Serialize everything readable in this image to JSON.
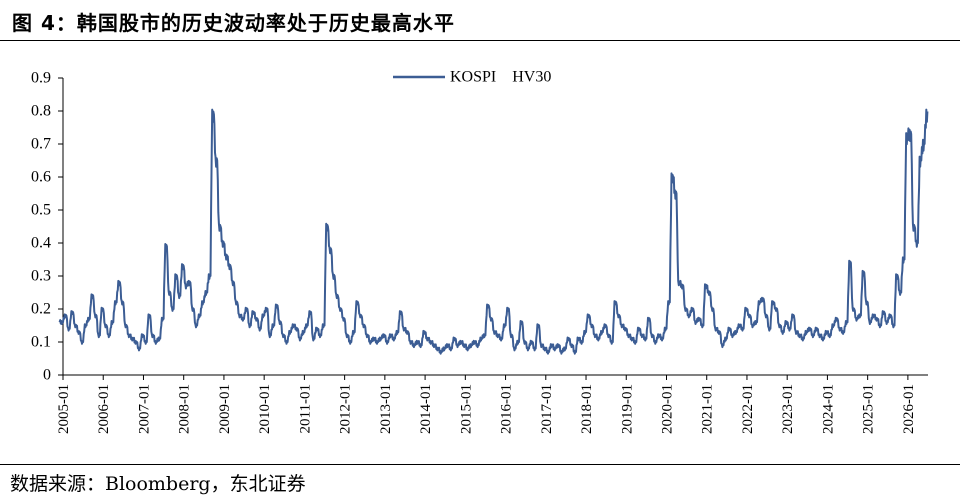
{
  "figure": {
    "title": "图 4：韩国股市的历史波动率处于历史最高水平",
    "source": "数据来源：Bloomberg，东北证券"
  },
  "chart_data": {
    "type": "line",
    "title": "",
    "xlabel": "",
    "ylabel": "",
    "x_tick_labels": [
      "2005-01",
      "2006-01",
      "2007-01",
      "2008-01",
      "2009-01",
      "2010-01",
      "2011-01",
      "2012-01",
      "2013-01",
      "2014-01",
      "2015-01",
      "2016-01",
      "2017-01",
      "2018-01",
      "2019-01",
      "2020-01",
      "2021-01",
      "2022-01",
      "2023-01",
      "2024-01",
      "2025-01",
      "2026-01"
    ],
    "y_tick_labels": [
      "0",
      "0.1",
      "0.2",
      "0.3",
      "0.4",
      "0.5",
      "0.6",
      "0.7",
      "0.8",
      "0.9"
    ],
    "ylim": [
      0,
      0.9
    ],
    "xlim": [
      "2005-01",
      "2026-07"
    ],
    "grid": false,
    "legend": "top-center",
    "series": [
      {
        "name": "KOSPI HV30",
        "color": "#3c5d94",
        "points": [
          [
            "2005-01",
            0.16
          ],
          [
            "2005-02",
            0.18
          ],
          [
            "2005-03",
            0.14
          ],
          [
            "2005-04",
            0.19
          ],
          [
            "2005-05",
            0.15
          ],
          [
            "2005-06",
            0.13
          ],
          [
            "2005-07",
            0.1
          ],
          [
            "2005-08",
            0.15
          ],
          [
            "2005-09",
            0.17
          ],
          [
            "2005-10",
            0.24
          ],
          [
            "2005-11",
            0.18
          ],
          [
            "2005-12",
            0.12
          ],
          [
            "2006-01",
            0.2
          ],
          [
            "2006-02",
            0.15
          ],
          [
            "2006-03",
            0.12
          ],
          [
            "2006-04",
            0.16
          ],
          [
            "2006-05",
            0.22
          ],
          [
            "2006-06",
            0.28
          ],
          [
            "2006-07",
            0.22
          ],
          [
            "2006-08",
            0.15
          ],
          [
            "2006-09",
            0.12
          ],
          [
            "2006-10",
            0.11
          ],
          [
            "2006-11",
            0.1
          ],
          [
            "2006-12",
            0.08
          ],
          [
            "2007-01",
            0.12
          ],
          [
            "2007-02",
            0.1
          ],
          [
            "2007-03",
            0.18
          ],
          [
            "2007-04",
            0.12
          ],
          [
            "2007-05",
            0.1
          ],
          [
            "2007-06",
            0.11
          ],
          [
            "2007-07",
            0.17
          ],
          [
            "2007-08",
            0.39
          ],
          [
            "2007-09",
            0.25
          ],
          [
            "2007-10",
            0.2
          ],
          [
            "2007-11",
            0.3
          ],
          [
            "2007-12",
            0.24
          ],
          [
            "2008-01",
            0.33
          ],
          [
            "2008-02",
            0.27
          ],
          [
            "2008-03",
            0.28
          ],
          [
            "2008-04",
            0.2
          ],
          [
            "2008-05",
            0.15
          ],
          [
            "2008-06",
            0.18
          ],
          [
            "2008-07",
            0.22
          ],
          [
            "2008-08",
            0.25
          ],
          [
            "2008-09",
            0.3
          ],
          [
            "2008-10",
            0.79
          ],
          [
            "2008-11",
            0.65
          ],
          [
            "2008-12",
            0.45
          ],
          [
            "2009-01",
            0.4
          ],
          [
            "2009-02",
            0.36
          ],
          [
            "2009-03",
            0.33
          ],
          [
            "2009-04",
            0.28
          ],
          [
            "2009-05",
            0.22
          ],
          [
            "2009-06",
            0.18
          ],
          [
            "2009-07",
            0.17
          ],
          [
            "2009-08",
            0.2
          ],
          [
            "2009-09",
            0.15
          ],
          [
            "2009-10",
            0.19
          ],
          [
            "2009-11",
            0.17
          ],
          [
            "2009-12",
            0.14
          ],
          [
            "2010-01",
            0.18
          ],
          [
            "2010-02",
            0.2
          ],
          [
            "2010-03",
            0.12
          ],
          [
            "2010-04",
            0.15
          ],
          [
            "2010-05",
            0.21
          ],
          [
            "2010-06",
            0.16
          ],
          [
            "2010-07",
            0.12
          ],
          [
            "2010-08",
            0.1
          ],
          [
            "2010-09",
            0.13
          ],
          [
            "2010-10",
            0.15
          ],
          [
            "2010-11",
            0.14
          ],
          [
            "2010-12",
            0.11
          ],
          [
            "2011-01",
            0.13
          ],
          [
            "2011-02",
            0.15
          ],
          [
            "2011-03",
            0.19
          ],
          [
            "2011-04",
            0.11
          ],
          [
            "2011-05",
            0.14
          ],
          [
            "2011-06",
            0.12
          ],
          [
            "2011-07",
            0.15
          ],
          [
            "2011-08",
            0.45
          ],
          [
            "2011-09",
            0.38
          ],
          [
            "2011-10",
            0.3
          ],
          [
            "2011-11",
            0.24
          ],
          [
            "2011-12",
            0.2
          ],
          [
            "2012-01",
            0.17
          ],
          [
            "2012-02",
            0.12
          ],
          [
            "2012-03",
            0.1
          ],
          [
            "2012-04",
            0.13
          ],
          [
            "2012-05",
            0.22
          ],
          [
            "2012-06",
            0.18
          ],
          [
            "2012-07",
            0.15
          ],
          [
            "2012-08",
            0.12
          ],
          [
            "2012-09",
            0.1
          ],
          [
            "2012-10",
            0.11
          ],
          [
            "2012-11",
            0.1
          ],
          [
            "2012-12",
            0.11
          ],
          [
            "2013-01",
            0.12
          ],
          [
            "2013-02",
            0.1
          ],
          [
            "2013-03",
            0.12
          ],
          [
            "2013-04",
            0.11
          ],
          [
            "2013-05",
            0.13
          ],
          [
            "2013-06",
            0.19
          ],
          [
            "2013-07",
            0.14
          ],
          [
            "2013-08",
            0.13
          ],
          [
            "2013-09",
            0.1
          ],
          [
            "2013-10",
            0.09
          ],
          [
            "2013-11",
            0.1
          ],
          [
            "2013-12",
            0.09
          ],
          [
            "2014-01",
            0.13
          ],
          [
            "2014-02",
            0.11
          ],
          [
            "2014-03",
            0.1
          ],
          [
            "2014-04",
            0.09
          ],
          [
            "2014-05",
            0.08
          ],
          [
            "2014-06",
            0.07
          ],
          [
            "2014-07",
            0.08
          ],
          [
            "2014-08",
            0.09
          ],
          [
            "2014-09",
            0.08
          ],
          [
            "2014-10",
            0.11
          ],
          [
            "2014-11",
            0.09
          ],
          [
            "2014-12",
            0.1
          ],
          [
            "2015-01",
            0.09
          ],
          [
            "2015-02",
            0.08
          ],
          [
            "2015-03",
            0.09
          ],
          [
            "2015-04",
            0.1
          ],
          [
            "2015-05",
            0.09
          ],
          [
            "2015-06",
            0.11
          ],
          [
            "2015-07",
            0.12
          ],
          [
            "2015-08",
            0.21
          ],
          [
            "2015-09",
            0.17
          ],
          [
            "2015-10",
            0.13
          ],
          [
            "2015-11",
            0.12
          ],
          [
            "2015-12",
            0.11
          ],
          [
            "2016-01",
            0.15
          ],
          [
            "2016-02",
            0.2
          ],
          [
            "2016-03",
            0.12
          ],
          [
            "2016-04",
            0.08
          ],
          [
            "2016-05",
            0.1
          ],
          [
            "2016-06",
            0.16
          ],
          [
            "2016-07",
            0.1
          ],
          [
            "2016-08",
            0.08
          ],
          [
            "2016-09",
            0.1
          ],
          [
            "2016-10",
            0.08
          ],
          [
            "2016-11",
            0.15
          ],
          [
            "2016-12",
            0.09
          ],
          [
            "2017-01",
            0.08
          ],
          [
            "2017-02",
            0.07
          ],
          [
            "2017-03",
            0.09
          ],
          [
            "2017-04",
            0.08
          ],
          [
            "2017-05",
            0.09
          ],
          [
            "2017-06",
            0.07
          ],
          [
            "2017-07",
            0.08
          ],
          [
            "2017-08",
            0.11
          ],
          [
            "2017-09",
            0.09
          ],
          [
            "2017-10",
            0.07
          ],
          [
            "2017-11",
            0.11
          ],
          [
            "2017-12",
            0.1
          ],
          [
            "2018-01",
            0.13
          ],
          [
            "2018-02",
            0.18
          ],
          [
            "2018-03",
            0.15
          ],
          [
            "2018-04",
            0.12
          ],
          [
            "2018-05",
            0.11
          ],
          [
            "2018-06",
            0.13
          ],
          [
            "2018-07",
            0.15
          ],
          [
            "2018-08",
            0.12
          ],
          [
            "2018-09",
            0.1
          ],
          [
            "2018-10",
            0.22
          ],
          [
            "2018-11",
            0.18
          ],
          [
            "2018-12",
            0.15
          ],
          [
            "2019-01",
            0.14
          ],
          [
            "2019-02",
            0.12
          ],
          [
            "2019-03",
            0.11
          ],
          [
            "2019-04",
            0.1
          ],
          [
            "2019-05",
            0.14
          ],
          [
            "2019-06",
            0.12
          ],
          [
            "2019-07",
            0.11
          ],
          [
            "2019-08",
            0.17
          ],
          [
            "2019-09",
            0.12
          ],
          [
            "2019-10",
            0.1
          ],
          [
            "2019-11",
            0.12
          ],
          [
            "2019-12",
            0.11
          ],
          [
            "2020-01",
            0.14
          ],
          [
            "2020-02",
            0.22
          ],
          [
            "2020-03",
            0.6
          ],
          [
            "2020-04",
            0.55
          ],
          [
            "2020-05",
            0.28
          ],
          [
            "2020-06",
            0.27
          ],
          [
            "2020-07",
            0.2
          ],
          [
            "2020-08",
            0.18
          ],
          [
            "2020-09",
            0.2
          ],
          [
            "2020-10",
            0.16
          ],
          [
            "2020-11",
            0.17
          ],
          [
            "2020-12",
            0.15
          ],
          [
            "2021-01",
            0.27
          ],
          [
            "2021-02",
            0.25
          ],
          [
            "2021-03",
            0.2
          ],
          [
            "2021-04",
            0.14
          ],
          [
            "2021-05",
            0.13
          ],
          [
            "2021-06",
            0.09
          ],
          [
            "2021-07",
            0.11
          ],
          [
            "2021-08",
            0.14
          ],
          [
            "2021-09",
            0.12
          ],
          [
            "2021-10",
            0.13
          ],
          [
            "2021-11",
            0.15
          ],
          [
            "2021-12",
            0.14
          ],
          [
            "2022-01",
            0.2
          ],
          [
            "2022-02",
            0.18
          ],
          [
            "2022-03",
            0.15
          ],
          [
            "2022-04",
            0.16
          ],
          [
            "2022-05",
            0.22
          ],
          [
            "2022-06",
            0.23
          ],
          [
            "2022-07",
            0.18
          ],
          [
            "2022-08",
            0.14
          ],
          [
            "2022-09",
            0.22
          ],
          [
            "2022-10",
            0.2
          ],
          [
            "2022-11",
            0.15
          ],
          [
            "2022-12",
            0.13
          ],
          [
            "2023-01",
            0.16
          ],
          [
            "2023-02",
            0.14
          ],
          [
            "2023-03",
            0.18
          ],
          [
            "2023-04",
            0.13
          ],
          [
            "2023-05",
            0.12
          ],
          [
            "2023-06",
            0.11
          ],
          [
            "2023-07",
            0.13
          ],
          [
            "2023-08",
            0.14
          ],
          [
            "2023-09",
            0.12
          ],
          [
            "2023-10",
            0.14
          ],
          [
            "2023-11",
            0.12
          ],
          [
            "2023-12",
            0.11
          ],
          [
            "2024-01",
            0.13
          ],
          [
            "2024-02",
            0.12
          ],
          [
            "2024-03",
            0.15
          ],
          [
            "2024-04",
            0.17
          ],
          [
            "2024-05",
            0.14
          ],
          [
            "2024-06",
            0.13
          ],
          [
            "2024-07",
            0.16
          ],
          [
            "2024-08",
            0.34
          ],
          [
            "2024-09",
            0.2
          ],
          [
            "2024-10",
            0.17
          ],
          [
            "2024-11",
            0.18
          ],
          [
            "2024-12",
            0.31
          ],
          [
            "2025-01",
            0.22
          ],
          [
            "2025-02",
            0.16
          ],
          [
            "2025-03",
            0.18
          ],
          [
            "2025-04",
            0.17
          ],
          [
            "2025-05",
            0.15
          ],
          [
            "2025-06",
            0.19
          ],
          [
            "2025-07",
            0.16
          ],
          [
            "2025-08",
            0.18
          ],
          [
            "2025-09",
            0.15
          ],
          [
            "2025-10",
            0.3
          ],
          [
            "2025-11",
            0.25
          ],
          [
            "2025-12",
            0.35
          ],
          [
            "2026-01",
            0.72
          ],
          [
            "2026-02",
            0.73
          ],
          [
            "2026-03",
            0.45
          ],
          [
            "2026-04",
            0.4
          ],
          [
            "2026-05",
            0.65
          ],
          [
            "2026-06",
            0.7
          ],
          [
            "2026-07",
            0.79
          ]
        ]
      }
    ]
  }
}
